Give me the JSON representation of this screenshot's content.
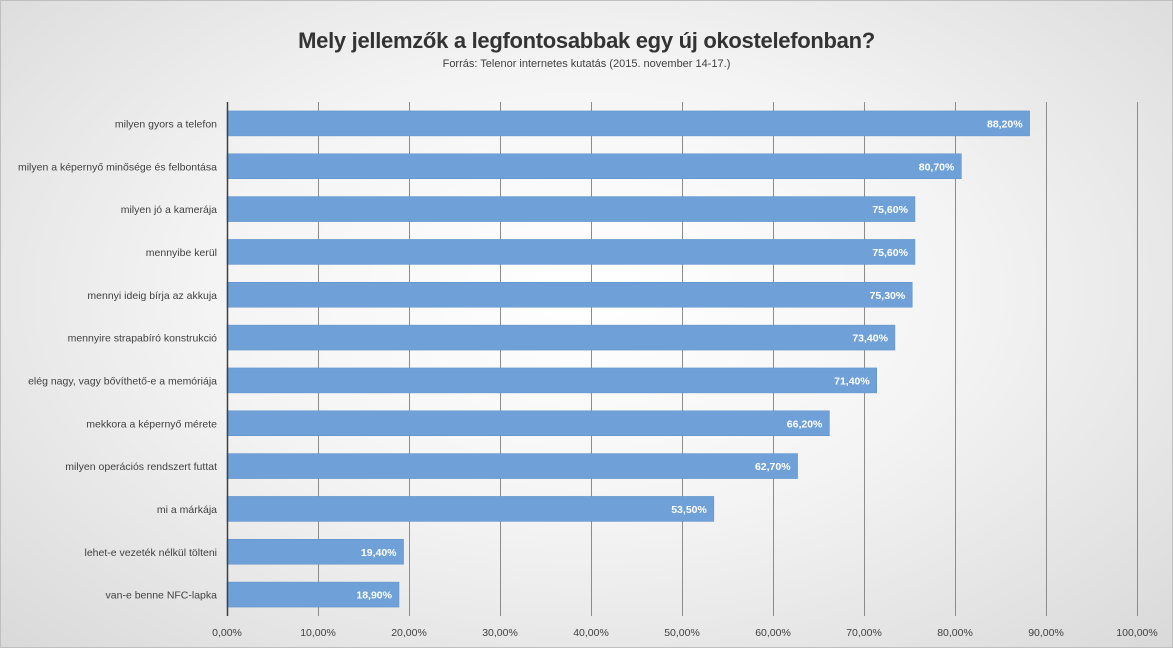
{
  "chart_data": {
    "type": "bar",
    "orientation": "horizontal",
    "title": "Mely jellemzők a legfontosabbak egy új okostelefonban?",
    "subtitle": "Forrás: Telenor internetes kutatás (2015. november 14-17.)",
    "categories": [
      "milyen gyors a telefon",
      "milyen a képernyő minősége és felbontása",
      "milyen jó a kamerája",
      "mennyibe kerül",
      "mennyi ideig bírja az akkuja",
      "mennyire strapabíró konstrukció",
      "elég nagy, vagy bővíthető-e a memóriája",
      "mekkora a képernyő mérete",
      "milyen operációs rendszert futtat",
      "mi a márkája",
      "lehet-e vezeték nélkül tölteni",
      "van-e benne NFC-lapka"
    ],
    "values": [
      88.2,
      80.7,
      75.6,
      75.6,
      75.3,
      73.4,
      71.4,
      66.2,
      62.7,
      53.5,
      19.4,
      18.9
    ],
    "value_labels": [
      "88,20%",
      "80,70%",
      "75,60%",
      "75,60%",
      "75,30%",
      "73,40%",
      "71,40%",
      "66,20%",
      "62,70%",
      "53,50%",
      "19,40%",
      "18,90%"
    ],
    "xlim": [
      0,
      100
    ],
    "xticks": [
      0,
      10,
      20,
      30,
      40,
      50,
      60,
      70,
      80,
      90,
      100
    ],
    "xtick_labels": [
      "0,00%",
      "10,00%",
      "20,00%",
      "30,00%",
      "40,00%",
      "50,00%",
      "60,00%",
      "70,00%",
      "80,00%",
      "90,00%",
      "100,00%"
    ],
    "xlabel": "",
    "ylabel": "",
    "grid": "vertical",
    "colors": {
      "bar": "#6fa1d8",
      "bar_edge": "#5b8fc9",
      "grid": "#8c8c8c",
      "axis": "#404040"
    }
  }
}
